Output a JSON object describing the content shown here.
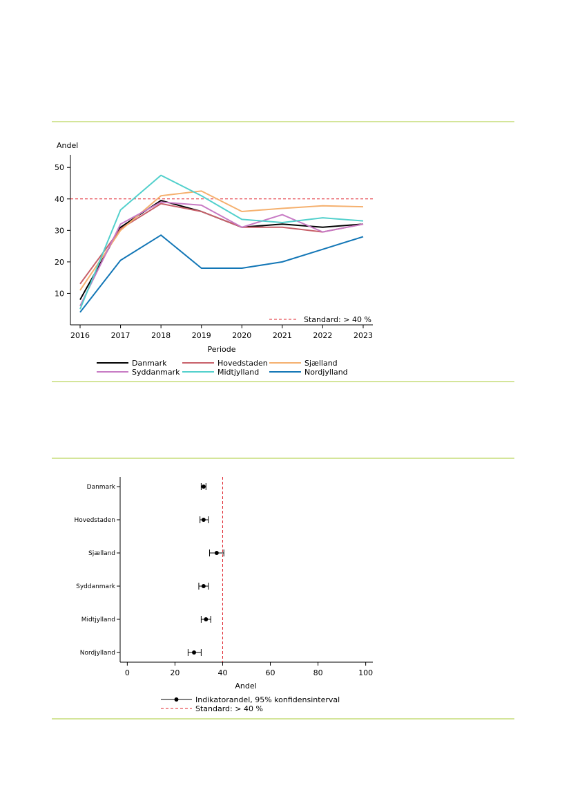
{
  "colors": {
    "rule": "#d4e59a",
    "standard_line": "#e0202a"
  },
  "chart_data": [
    {
      "type": "line",
      "ylabel": "Andel",
      "xlabel": "Periode",
      "x": [
        2016,
        2017,
        2018,
        2019,
        2020,
        2021,
        2022,
        2023
      ],
      "x_ticks": [
        "2016",
        "2017",
        "2018",
        "2019",
        "2020",
        "2021",
        "2022",
        "2023"
      ],
      "y_ticks": [
        "10",
        "20",
        "30",
        "40",
        "50"
      ],
      "ylim": [
        0,
        54
      ],
      "grid": false,
      "reference_line": {
        "value": 40,
        "label": "Standard: > 40 %"
      },
      "legend_position": "bottom",
      "series": [
        {
          "name": "Danmark",
          "color": "#000000",
          "values": [
            8,
            31,
            39.5,
            36,
            31,
            32,
            31,
            32
          ]
        },
        {
          "name": "Hovedstaden",
          "color": "#c8606a",
          "values": [
            13,
            30.5,
            38.5,
            36,
            31,
            31,
            29.5,
            32
          ]
        },
        {
          "name": "Sjælland",
          "color": "#f5b06e",
          "values": [
            11,
            30,
            41,
            42.5,
            36,
            37,
            37.8,
            37.5
          ]
        },
        {
          "name": "Syddanmark",
          "color": "#c77ac4",
          "values": [
            6,
            32,
            39,
            38,
            31,
            35,
            29.5,
            32
          ]
        },
        {
          "name": "Midtjylland",
          "color": "#52d0cc",
          "values": [
            5,
            36.5,
            47.5,
            41,
            33.5,
            32.5,
            34,
            33
          ]
        },
        {
          "name": "Nordjylland",
          "color": "#1276b6",
          "values": [
            4,
            20.5,
            28.5,
            18,
            18,
            20,
            24,
            28
          ]
        }
      ]
    },
    {
      "type": "scatter",
      "xlabel": "Andel",
      "xlim": [
        -3,
        103
      ],
      "x_ticks": [
        "0",
        "20",
        "40",
        "60",
        "80",
        "100"
      ],
      "grid": false,
      "reference_line": {
        "value": 40,
        "label": "Standard: > 40 %"
      },
      "point_label": "Indikatorandel, 95% konfidensinterval",
      "legend_position": "bottom",
      "categories": [
        "Danmark",
        "Hovedstaden",
        "Sjælland",
        "Syddanmark",
        "Midtjylland",
        "Nordjylland"
      ],
      "values": [
        32,
        32,
        37.5,
        32,
        33,
        28
      ],
      "ci_low": [
        31,
        30.5,
        34.5,
        30,
        31,
        25.5
      ],
      "ci_high": [
        33,
        34,
        40.5,
        34,
        35,
        31
      ]
    }
  ]
}
